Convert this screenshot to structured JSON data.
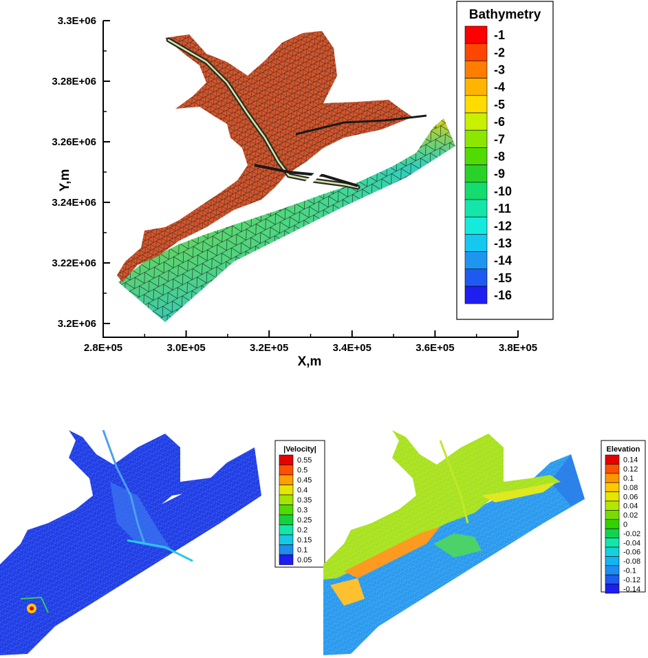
{
  "chart_data": [
    {
      "type": "heatmap",
      "subject": "triangular mesh bathymetry map",
      "xlabel": "X,m",
      "ylabel": "Y,m",
      "xlim": [
        280000,
        380000
      ],
      "ylim": [
        3200000,
        3300000
      ],
      "x_ticks": [
        "2.8E+05",
        "3.0E+05",
        "3.2E+05",
        "3.4E+05",
        "3.6E+05",
        "3.8E+05"
      ],
      "y_ticks": [
        "3.2E+06",
        "3.22E+06",
        "3.24E+06",
        "3.26E+06",
        "3.28E+06",
        "3.3E+06"
      ],
      "legend": {
        "title": "Bathymetry",
        "placement": "top-right",
        "levels": [
          "-1",
          "-2",
          "-3",
          "-4",
          "-5",
          "-6",
          "-7",
          "-8",
          "-9",
          "-10",
          "-11",
          "-12",
          "-13",
          "-14",
          "-15",
          "-16"
        ],
        "colors": [
          "#ff0000",
          "#ff4600",
          "#ff7d00",
          "#ffb400",
          "#ffdc00",
          "#c8f000",
          "#8ce600",
          "#50dc00",
          "#28d228",
          "#14dc6e",
          "#14e6aa",
          "#14ebdc",
          "#14c8f0",
          "#1e96f0",
          "#1e5af0",
          "#1e1ef0"
        ]
      }
    },
    {
      "type": "heatmap",
      "subject": "velocity magnitude map",
      "legend": {
        "title": "|Velocity|",
        "placement": "right",
        "levels": [
          "0.55",
          "0.5",
          "0.45",
          "0.4",
          "0.35",
          "0.3",
          "0.25",
          "0.2",
          "0.15",
          "0.1",
          "0.05"
        ],
        "colors": [
          "#e60000",
          "#ff5000",
          "#ffa000",
          "#e6e600",
          "#a0e600",
          "#50dc00",
          "#14d23c",
          "#14e6aa",
          "#14c8e6",
          "#1e8cf0",
          "#1e1ef0"
        ]
      }
    },
    {
      "type": "heatmap",
      "subject": "water surface elevation map",
      "legend": {
        "title": "Elevation",
        "placement": "right",
        "levels": [
          "0.14",
          "0.12",
          "0.1",
          "0.08",
          "0.06",
          "0.04",
          "0.02",
          "0",
          "-0.02",
          "-0.04",
          "-0.06",
          "-0.08",
          "-0.1",
          "-0.12",
          "-0.14"
        ],
        "colors": [
          "#e60000",
          "#ff5000",
          "#ff9600",
          "#ffc800",
          "#e6e600",
          "#b4e600",
          "#78dc00",
          "#32d200",
          "#14d250",
          "#14e6aa",
          "#14d2dc",
          "#14b4f0",
          "#1e8cf0",
          "#1e5af0",
          "#1e1ef0"
        ]
      }
    }
  ]
}
